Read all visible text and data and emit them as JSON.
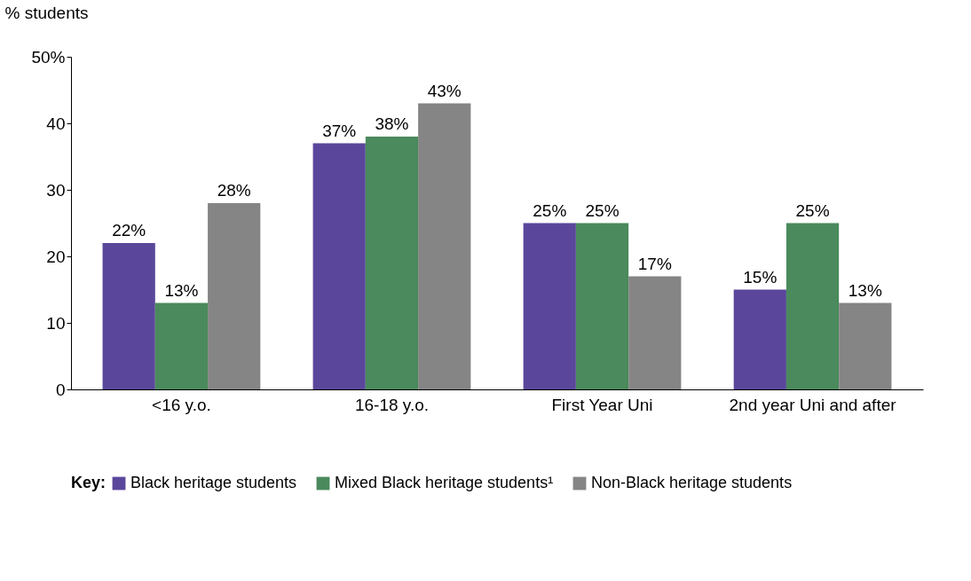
{
  "chart_data": {
    "type": "bar",
    "ylabel": "% students",
    "legend_title": "Key:",
    "categories": [
      "<16 y.o.",
      "16-18 y.o.",
      "First Year Uni",
      "2nd year Uni and after"
    ],
    "series": [
      {
        "name": "Black heritage students",
        "color": "#5a479b",
        "values": [
          22,
          37,
          25,
          15
        ],
        "value_labels": [
          "22%",
          "37%",
          "25%",
          "15%"
        ]
      },
      {
        "name": "Mixed Black heritage students¹",
        "color": "#4a8a5c",
        "values": [
          13,
          38,
          25,
          25
        ],
        "value_labels": [
          "13%",
          "38%",
          "25%",
          "25%"
        ]
      },
      {
        "name": "Non-Black heritage students",
        "color": "#858585",
        "values": [
          28,
          43,
          17,
          13
        ],
        "value_labels": [
          "28%",
          "43%",
          "17%",
          "13%"
        ]
      }
    ],
    "ylim": [
      0,
      50
    ],
    "yticks": [
      0,
      10,
      20,
      30,
      40,
      {
        "value": 50,
        "label": "50%"
      }
    ],
    "grid": false,
    "legend": "bottom"
  }
}
